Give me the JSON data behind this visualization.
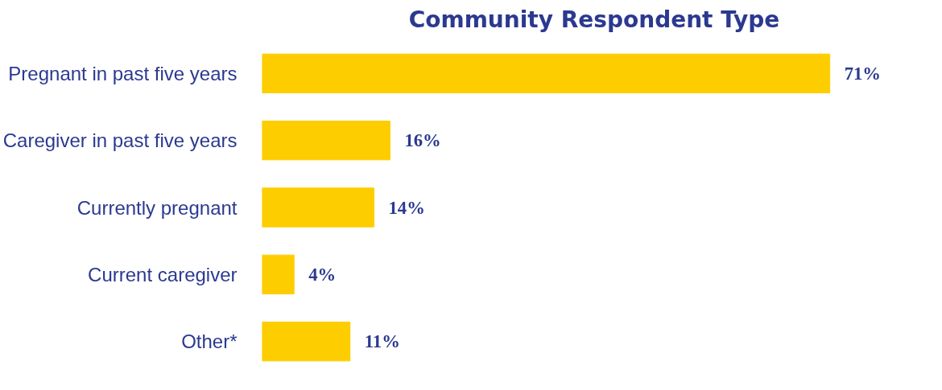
{
  "chart_data": {
    "type": "bar",
    "orientation": "horizontal",
    "title": "Community Respondent Type",
    "categories": [
      "Pregnant in past five years",
      "Caregiver in past five years",
      "Currently pregnant",
      "Current caregiver",
      "Other*"
    ],
    "values": [
      71,
      16,
      14,
      4,
      11
    ],
    "value_labels": [
      "71%",
      "16%",
      "14%",
      "4%",
      "11%"
    ],
    "color": "#fecd00"
  }
}
